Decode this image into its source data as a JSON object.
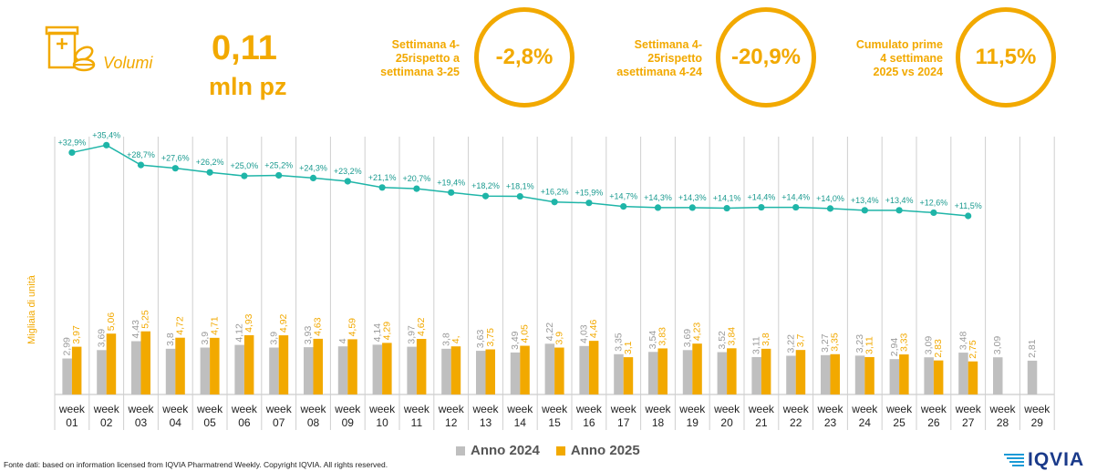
{
  "header": {
    "metric_label": "Volumi",
    "value": "0,11",
    "unit": "mln pz",
    "kpis": [
      {
        "label_lines": [
          "Settimana 4-",
          "25rispetto a",
          "settimana 3-25"
        ],
        "value": "-2,8%"
      },
      {
        "label_lines": [
          "Settimana 4-",
          "25rispetto",
          "asettimana 4-24"
        ],
        "value": "-20,9%"
      },
      {
        "label_lines": [
          "Cumulato prime",
          "4 settimane",
          "2025 vs 2024"
        ],
        "value": "11,5%"
      }
    ]
  },
  "colors": {
    "accent": "#f2a900",
    "series_2024": "#bfbfbf",
    "series_2025": "#f2a900",
    "line": "#1fb5a8"
  },
  "chart_data": {
    "type": "bar",
    "ylabel": "Migliaia di unità",
    "categories": [
      "week 01",
      "week 02",
      "week 03",
      "week 04",
      "week 05",
      "week 06",
      "week 07",
      "week 08",
      "week 09",
      "week 10",
      "week 11",
      "week 12",
      "week 13",
      "week 14",
      "week 15",
      "week 16",
      "week 17",
      "week 18",
      "week 19",
      "week 20",
      "week 21",
      "week 22",
      "week 23",
      "week 24",
      "week 25",
      "week 26",
      "week 27",
      "week 28",
      "week 29"
    ],
    "series": [
      {
        "name": "Anno 2024",
        "values": [
          2.99,
          3.69,
          4.43,
          3.8,
          3.9,
          4.12,
          3.9,
          3.93,
          4,
          4.14,
          3.97,
          3.8,
          3.63,
          3.49,
          4.22,
          4.03,
          3.35,
          3.54,
          3.69,
          3.52,
          3.11,
          3.22,
          3.27,
          3.23,
          2.94,
          3.09,
          3.48,
          3.09,
          2.81
        ],
        "labels": [
          "2,99",
          "3,69",
          "4,43",
          "3,8",
          "3,9",
          "4,12",
          "3,9",
          "3,93",
          "4",
          "4,14",
          "3,97",
          "3,8",
          "3,63",
          "3,49",
          "4,22",
          "4,03",
          "3,35",
          "3,54",
          "3,69",
          "3,52",
          "3,11",
          "3,22",
          "3,27",
          "3,23",
          "2,94",
          "3,09",
          "3,48",
          "3,09",
          "2,81"
        ]
      },
      {
        "name": "Anno 2025",
        "values": [
          3.97,
          5.06,
          5.25,
          4.72,
          4.71,
          4.93,
          4.92,
          4.63,
          4.59,
          4.29,
          4.62,
          4,
          3.75,
          4.05,
          3.9,
          4.46,
          3.1,
          3.83,
          4.23,
          3.84,
          3.8,
          3.7,
          3.35,
          3.11,
          3.33,
          2.83,
          2.75,
          null,
          null
        ],
        "labels": [
          "3,97",
          "5,06",
          "5,25",
          "4,72",
          "4,71",
          "4,93",
          "4,92",
          "4,63",
          "4,59",
          "4,29",
          "4,62",
          "4,",
          "3,75",
          "4,05",
          "3,9",
          "4,46",
          "3,1",
          "3,83",
          "4,23",
          "3,84",
          "3,8",
          "3,7",
          "3,35",
          "3,11",
          "3,33",
          "2,83",
          "2,75",
          "",
          ""
        ]
      }
    ],
    "line": {
      "values": [
        32.9,
        35.4,
        28.7,
        27.6,
        26.2,
        25.0,
        25.2,
        24.3,
        23.2,
        21.1,
        20.7,
        19.4,
        18.2,
        18.1,
        16.2,
        15.9,
        14.7,
        14.3,
        14.3,
        14.1,
        14.4,
        14.4,
        14.0,
        13.4,
        13.4,
        12.6,
        11.5
      ],
      "labels": [
        "+32,9%",
        "+35,4%",
        "+28,7%",
        "+27,6%",
        "+26,2%",
        "+25,0%",
        "+25,2%",
        "+24,3%",
        "+23,2%",
        "+21,1%",
        "+20,7%",
        "+19,4%",
        "+18,2%",
        "+18,1%",
        "+16,2%",
        "+15,9%",
        "+14,7%",
        "+14,3%",
        "+14,3%",
        "+14,1%",
        "+14,4%",
        "+14,4%",
        "+14,0%",
        "+13,4%",
        "+13,4%",
        "+12,6%",
        "+11,5%"
      ]
    },
    "legend": "bottom-center",
    "grid": false
  },
  "footer": {
    "source": "Fonte dati: based on information licensed from IQVIA Pharmatrend Weekly. Copyright IQVIA. All rights reserved.",
    "logo_text": "IQVIA"
  }
}
